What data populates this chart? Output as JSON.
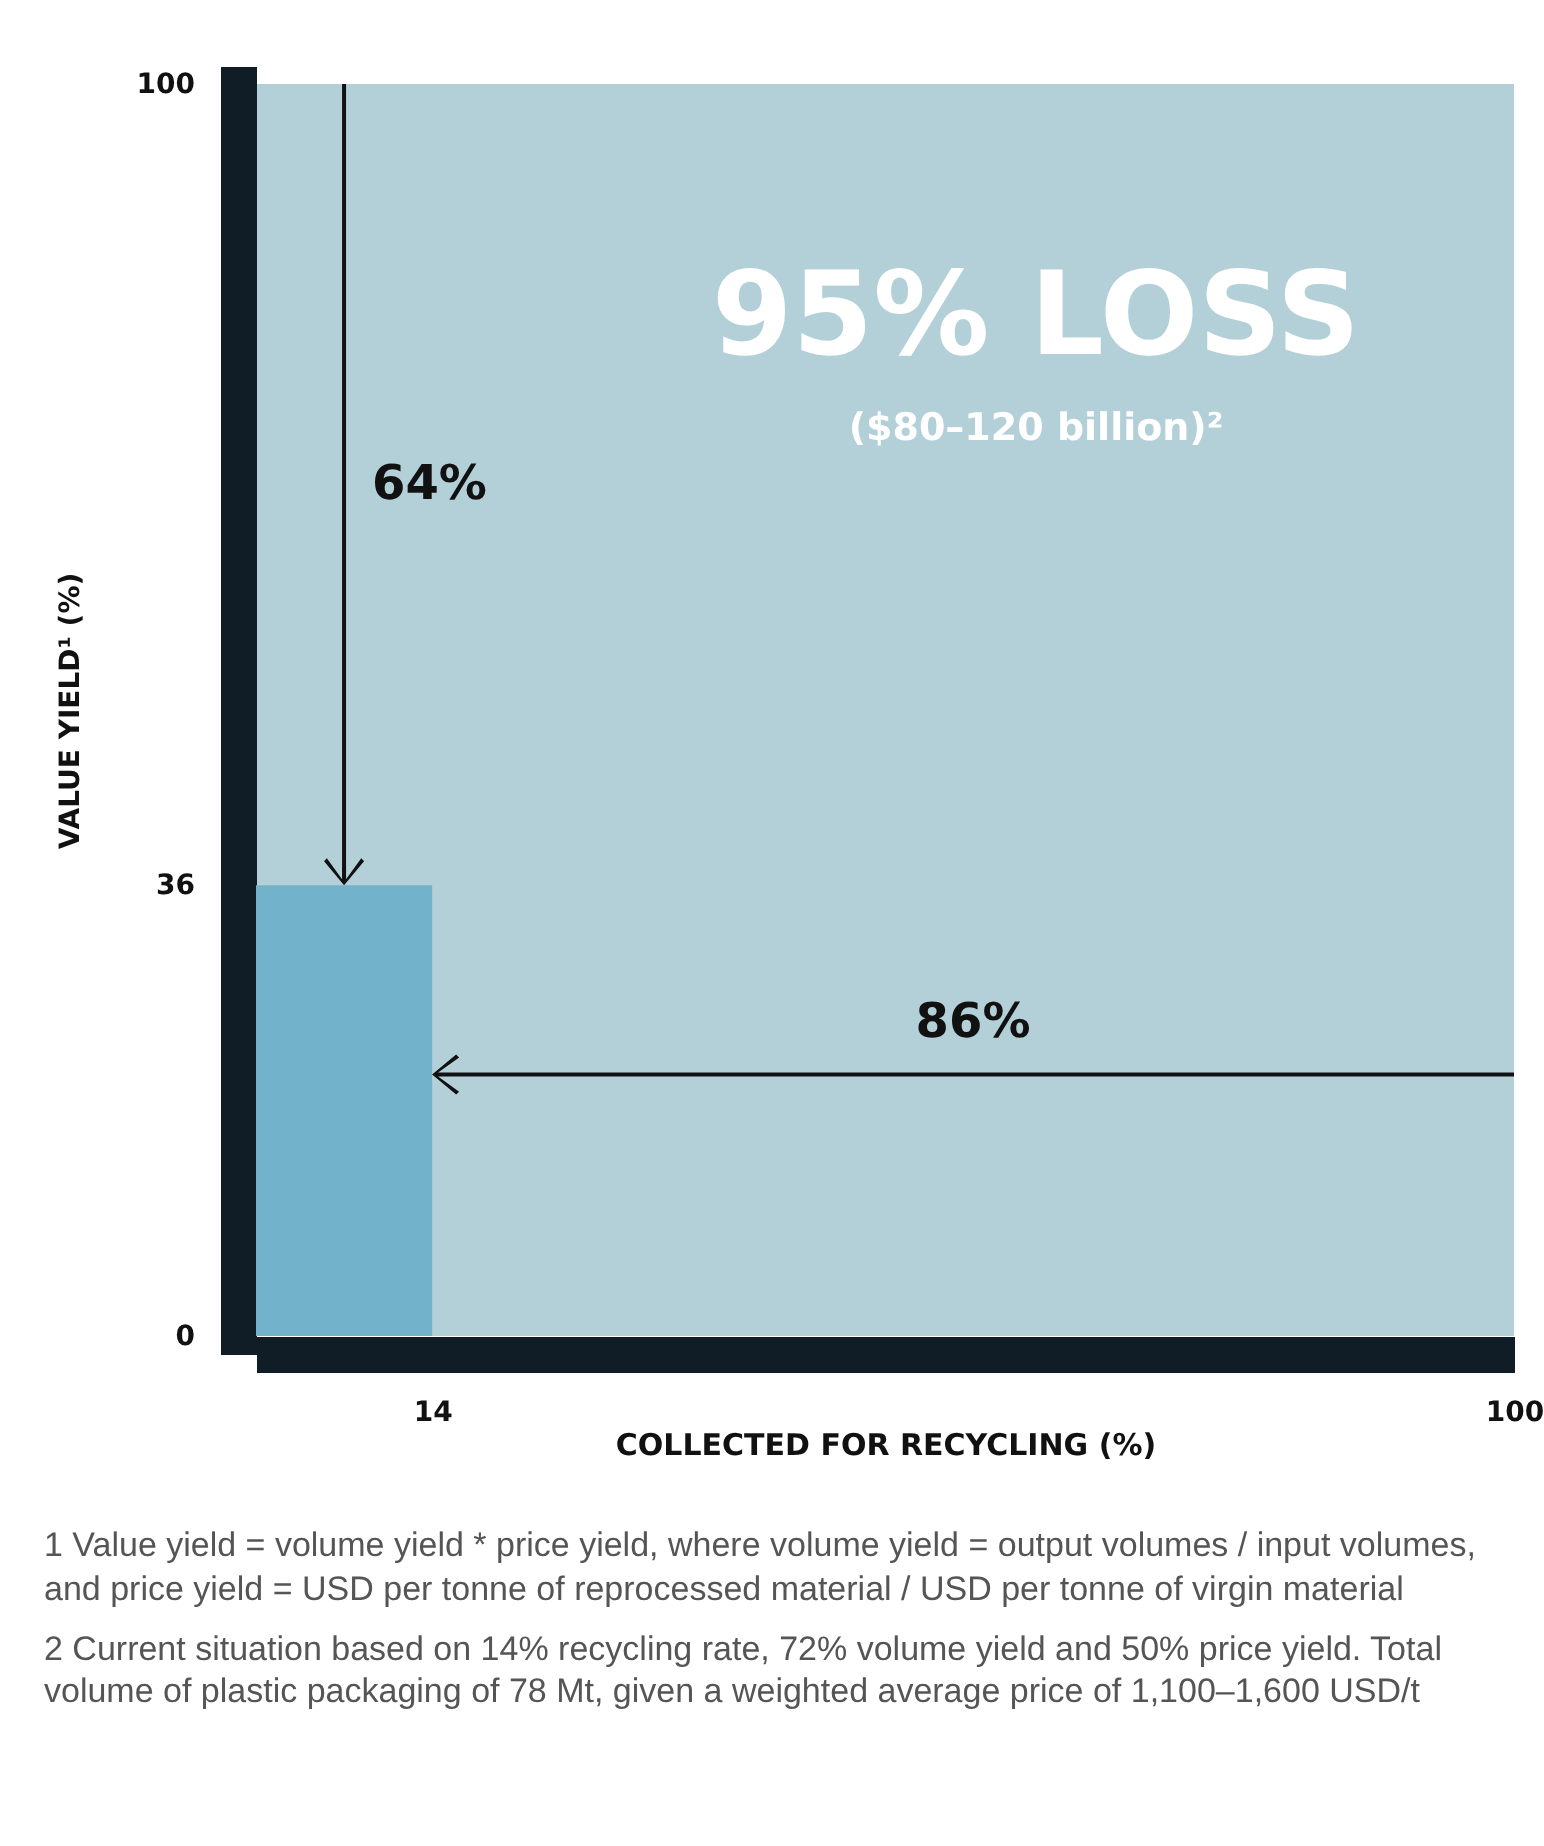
{
  "chart_data": {
    "type": "area",
    "xlabel": "COLLECTED FOR RECYCLING (%)",
    "ylabel": "VALUE YIELD¹ (%)",
    "x": [
      0,
      14
    ],
    "series": [
      {
        "color": "#72b3cb",
        "values": [
          36,
          36
        ]
      }
    ],
    "xlim": [
      0,
      100
    ],
    "ylim": [
      0,
      100
    ],
    "xticks": [
      14,
      100
    ],
    "yticks": [
      0,
      36,
      100
    ],
    "annotations": [
      "64%",
      "86%",
      "95% LOSS",
      "($80–120 billion)²",
      "1 Value yield = volume yield * price yield, where volume yield = output volumes / input volumes, and price yield = USD per tonne of reprocessed material / USD per tonne of virgin material",
      "2 Current situation based on 14% recycling rate, 72% volume yield and 50% price yield. Total volume of plastic packaging of 78 Mt, given a weighted average price of 1,100–1,600 USD/t"
    ]
  }
}
